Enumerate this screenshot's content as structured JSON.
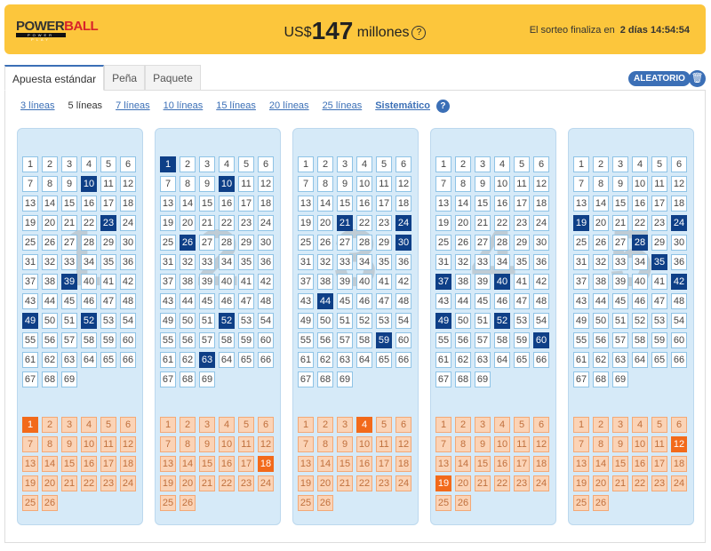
{
  "header": {
    "logo": "POWERBALL POWER PLAY",
    "jackpot_prefix": "US$",
    "jackpot_amount": "147",
    "jackpot_suffix": "millones",
    "help": "?",
    "ends_label": "El sorteo finaliza en",
    "ends_value": "2 días 14:54:54",
    "bg_color": "#fcc63c"
  },
  "tabs": [
    {
      "label": "Apuesta estándar",
      "active": true
    },
    {
      "label": "Peña"
    },
    {
      "label": "Paquete"
    }
  ],
  "actions": {
    "random": "ALEATORIO",
    "delete_icon": "trash-icon"
  },
  "line_options": [
    {
      "label": "3 líneas"
    },
    {
      "label": "5 líneas",
      "current": true
    },
    {
      "label": "7 líneas"
    },
    {
      "label": "10 líneas"
    },
    {
      "label": "15 líneas"
    },
    {
      "label": "20 líneas"
    },
    {
      "label": "25 líneas"
    }
  ],
  "systematic": "Sistemático",
  "main_max": 69,
  "powerball_max": 26,
  "panels": [
    {
      "label": "1",
      "main": [
        10,
        23,
        39,
        49,
        52
      ],
      "powerball": [
        1
      ]
    },
    {
      "label": "2",
      "main": [
        1,
        10,
        26,
        52,
        63
      ],
      "powerball": [
        18
      ]
    },
    {
      "label": "3",
      "main": [
        21,
        24,
        30,
        44,
        59
      ],
      "powerball": [
        4
      ]
    },
    {
      "label": "4",
      "main": [
        37,
        40,
        49,
        52,
        60
      ],
      "powerball": [
        19
      ]
    },
    {
      "label": "5",
      "main": [
        19,
        24,
        28,
        35,
        42
      ],
      "powerball": [
        12
      ]
    }
  ],
  "colors": {
    "selected_main": "#0e3f87",
    "selected_powerball": "#f26a1b",
    "accent": "#3b6fb6"
  }
}
